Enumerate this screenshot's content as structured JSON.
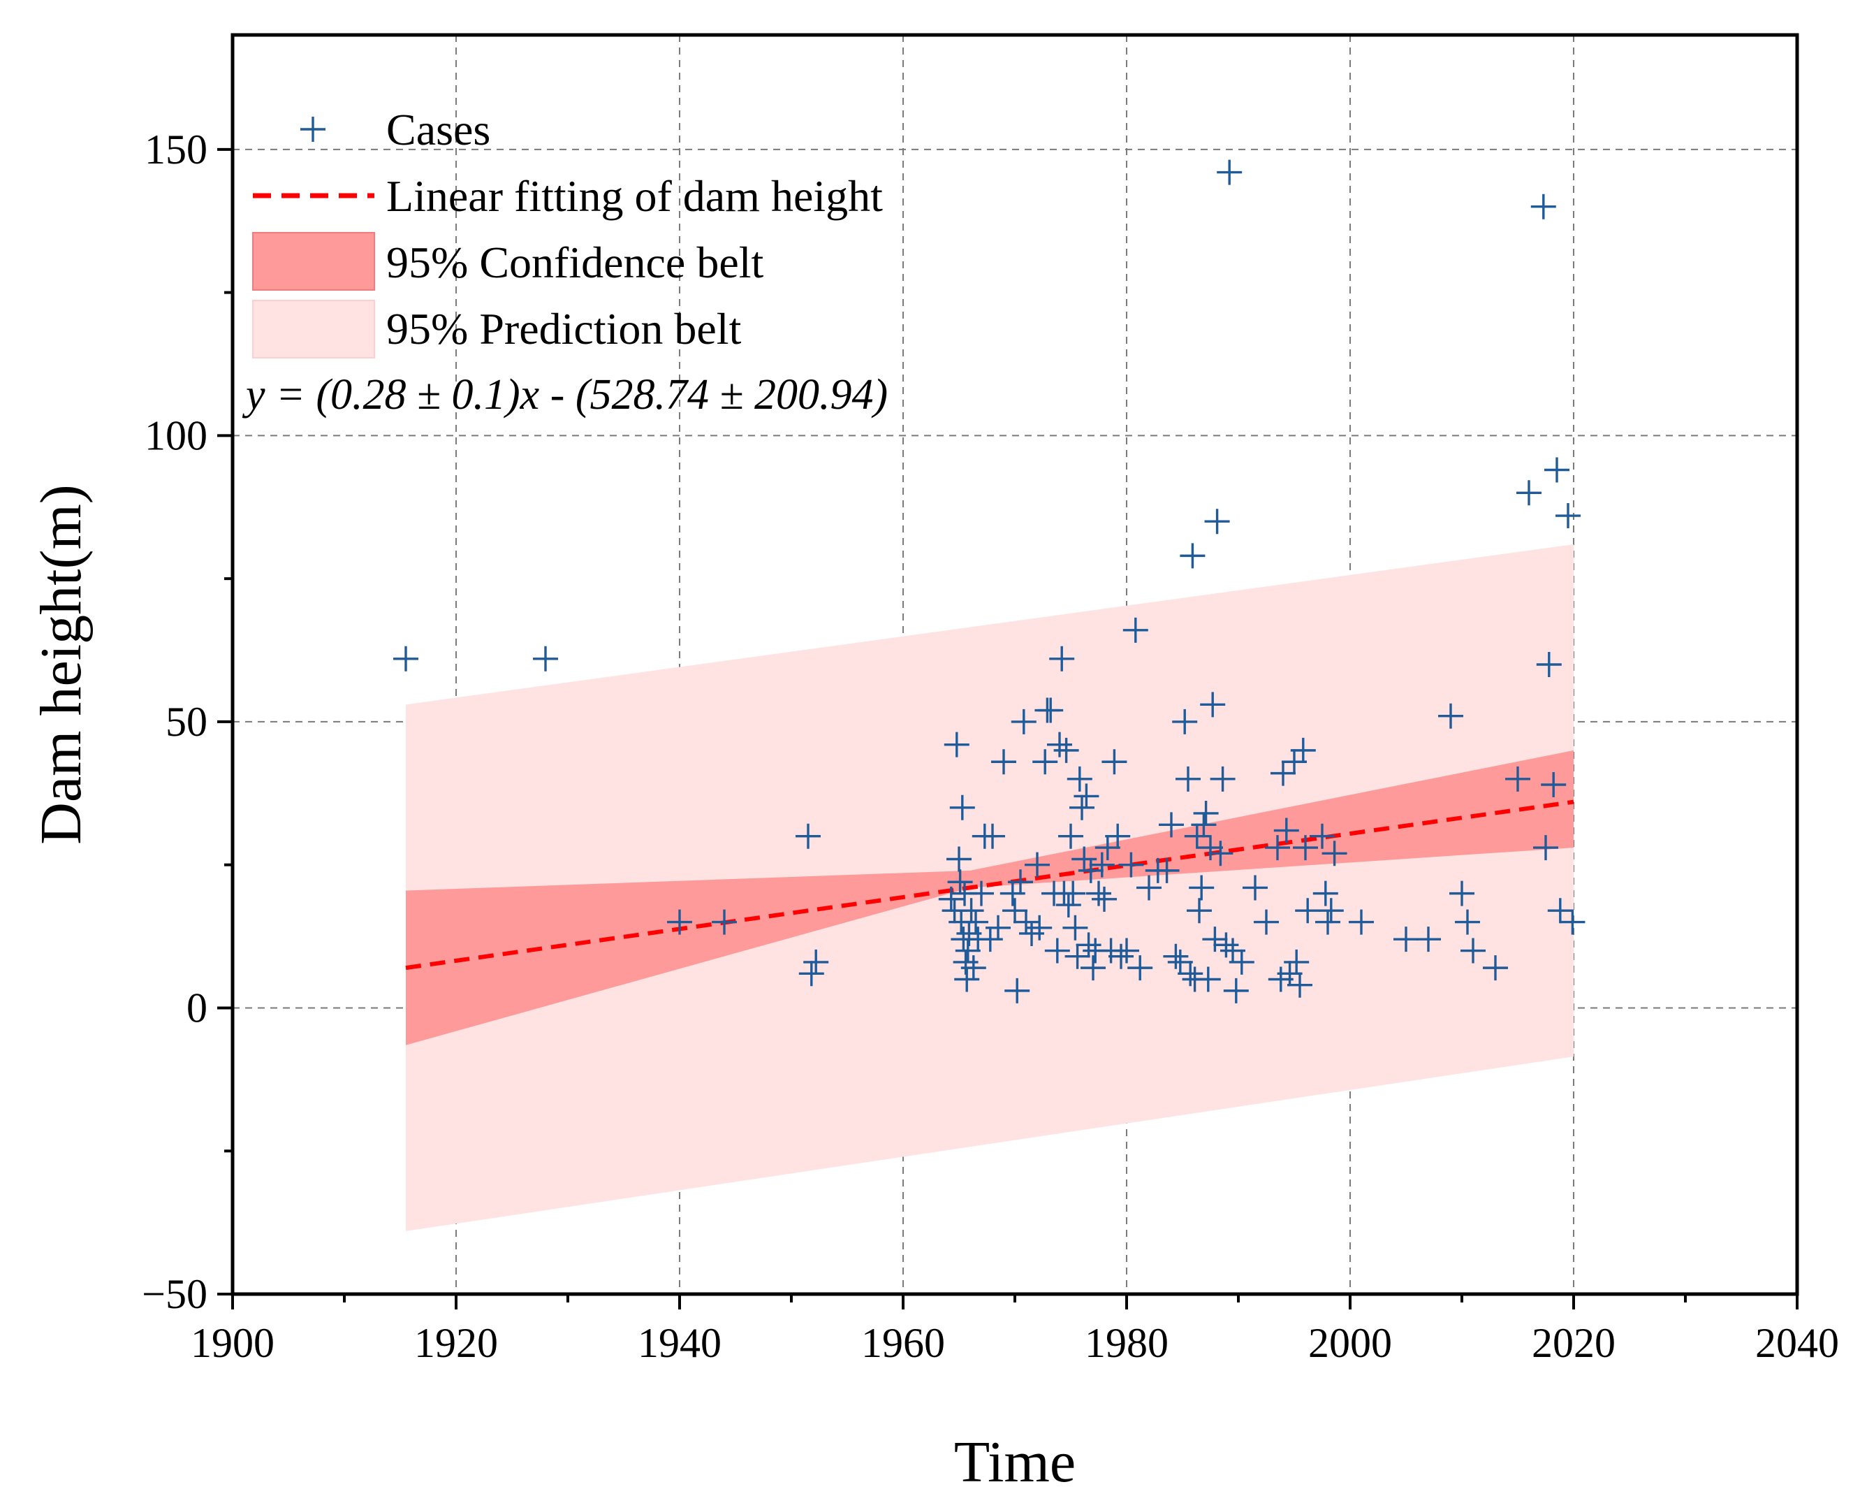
{
  "chart_data": {
    "type": "scatter",
    "title": "",
    "xlabel": "Time",
    "ylabel": "Dam height(m)",
    "xlim": [
      1900,
      2040
    ],
    "ylim": [
      -50,
      170
    ],
    "x_ticks": [
      1900,
      1920,
      1940,
      1960,
      1980,
      2000,
      2020,
      2040
    ],
    "y_ticks": [
      -50,
      0,
      50,
      100,
      150
    ],
    "grid": true,
    "legend_position": "top-left",
    "legend": {
      "cases": "Cases",
      "fit": "Linear fitting of dam height",
      "confidence": "95% Confidence belt",
      "prediction": "95% Prediction belt"
    },
    "equation": "y = (0.28 ± 0.1)x - (528.74 ± 200.94)",
    "colors": {
      "cases": "#1f5a99",
      "fit": "#ff0000",
      "confidence": "#ff9a9a",
      "prediction": "#ffe3e3"
    },
    "fit_line": {
      "x": [
        1915.5,
        2020
      ],
      "y": [
        7,
        36
      ]
    },
    "confidence_band": {
      "x": [
        1915.5,
        1966,
        2020
      ],
      "lower": [
        -6.5,
        21,
        28
      ],
      "upper": [
        20.5,
        24,
        45
      ]
    },
    "prediction_band": {
      "x": [
        1915.5,
        2020
      ],
      "lower": [
        -39,
        -8.5
      ],
      "upper": [
        53,
        81
      ]
    },
    "series": [
      {
        "name": "Cases",
        "points": [
          [
            1915.5,
            61
          ],
          [
            1928,
            61
          ],
          [
            1940,
            15
          ],
          [
            1944,
            15
          ],
          [
            1951.5,
            30
          ],
          [
            1951.8,
            6
          ],
          [
            1952.2,
            8
          ],
          [
            1964.3,
            19
          ],
          [
            1964.6,
            17
          ],
          [
            1964.8,
            46
          ],
          [
            1965,
            26
          ],
          [
            1965.1,
            22
          ],
          [
            1965.2,
            15
          ],
          [
            1965.3,
            35
          ],
          [
            1965.4,
            12
          ],
          [
            1965.5,
            20
          ],
          [
            1965.6,
            8
          ],
          [
            1965.7,
            5
          ],
          [
            1965.8,
            10
          ],
          [
            1965.9,
            13
          ],
          [
            1966.1,
            17
          ],
          [
            1966.3,
            7
          ],
          [
            1966.5,
            15
          ],
          [
            1966.7,
            12
          ],
          [
            1967,
            20
          ],
          [
            1967.3,
            30
          ],
          [
            1967.8,
            12
          ],
          [
            1968,
            30
          ],
          [
            1968.5,
            14
          ],
          [
            1969,
            43
          ],
          [
            1969.8,
            20
          ],
          [
            1970,
            17
          ],
          [
            1970.2,
            3
          ],
          [
            1970.5,
            22
          ],
          [
            1970.8,
            50
          ],
          [
            1971,
            15
          ],
          [
            1971.5,
            13
          ],
          [
            1972,
            25
          ],
          [
            1972.2,
            14
          ],
          [
            1972.7,
            43
          ],
          [
            1972.9,
            52
          ],
          [
            1973.2,
            52
          ],
          [
            1973.5,
            20
          ],
          [
            1973.8,
            10
          ],
          [
            1974,
            46
          ],
          [
            1974.2,
            61
          ],
          [
            1974.4,
            20
          ],
          [
            1974.6,
            45
          ],
          [
            1974.8,
            18
          ],
          [
            1975,
            30
          ],
          [
            1975.2,
            20
          ],
          [
            1975.4,
            14
          ],
          [
            1975.6,
            9
          ],
          [
            1975.8,
            40
          ],
          [
            1976,
            35
          ],
          [
            1976.2,
            26
          ],
          [
            1976.4,
            37
          ],
          [
            1976.6,
            11
          ],
          [
            1976.8,
            24
          ],
          [
            1977,
            7
          ],
          [
            1977.2,
            10
          ],
          [
            1977.5,
            20
          ],
          [
            1977.8,
            25
          ],
          [
            1978,
            19
          ],
          [
            1978.3,
            28
          ],
          [
            1978.6,
            10
          ],
          [
            1978.9,
            43
          ],
          [
            1979.2,
            30
          ],
          [
            1979.5,
            9
          ],
          [
            1980,
            10
          ],
          [
            1980.4,
            25
          ],
          [
            1980.8,
            66
          ],
          [
            1981.2,
            7
          ],
          [
            1982,
            21
          ],
          [
            1982.8,
            24
          ],
          [
            1983.6,
            24
          ],
          [
            1984,
            32
          ],
          [
            1984.4,
            9
          ],
          [
            1984.8,
            8
          ],
          [
            1985.2,
            50
          ],
          [
            1985.5,
            40
          ],
          [
            1985.7,
            6
          ],
          [
            1985.9,
            79
          ],
          [
            1986.1,
            5
          ],
          [
            1986.3,
            30
          ],
          [
            1986.5,
            17
          ],
          [
            1986.7,
            21
          ],
          [
            1986.9,
            32
          ],
          [
            1987.1,
            34
          ],
          [
            1987.3,
            5
          ],
          [
            1987.5,
            28
          ],
          [
            1987.7,
            53
          ],
          [
            1987.9,
            12
          ],
          [
            1988.1,
            85
          ],
          [
            1988.4,
            27
          ],
          [
            1988.6,
            40
          ],
          [
            1988.9,
            11
          ],
          [
            1989.2,
            146
          ],
          [
            1989.5,
            10
          ],
          [
            1989.8,
            3
          ],
          [
            1990.3,
            8
          ],
          [
            1991.5,
            21
          ],
          [
            1992.5,
            15
          ],
          [
            1993.5,
            28
          ],
          [
            1993.8,
            5
          ],
          [
            1994,
            41
          ],
          [
            1994.3,
            31
          ],
          [
            1994.6,
            6
          ],
          [
            1995,
            43
          ],
          [
            1995.2,
            8
          ],
          [
            1995.5,
            4
          ],
          [
            1995.8,
            45
          ],
          [
            1996,
            28
          ],
          [
            1996.2,
            17
          ],
          [
            1997.5,
            30
          ],
          [
            1997.8,
            20
          ],
          [
            1998,
            15
          ],
          [
            1998.3,
            17
          ],
          [
            1998.6,
            27
          ],
          [
            2001,
            15
          ],
          [
            2005,
            12
          ],
          [
            2007,
            12
          ],
          [
            2009,
            51
          ],
          [
            2010,
            20
          ],
          [
            2010.5,
            15
          ],
          [
            2011,
            10
          ],
          [
            2013,
            7
          ],
          [
            2015,
            40
          ],
          [
            2016,
            90
          ],
          [
            2017.3,
            140
          ],
          [
            2017.5,
            28
          ],
          [
            2017.8,
            60
          ],
          [
            2018.2,
            39
          ],
          [
            2018.5,
            94
          ],
          [
            2018.8,
            17
          ],
          [
            2019.5,
            86
          ],
          [
            2019.9,
            15
          ]
        ]
      }
    ]
  }
}
